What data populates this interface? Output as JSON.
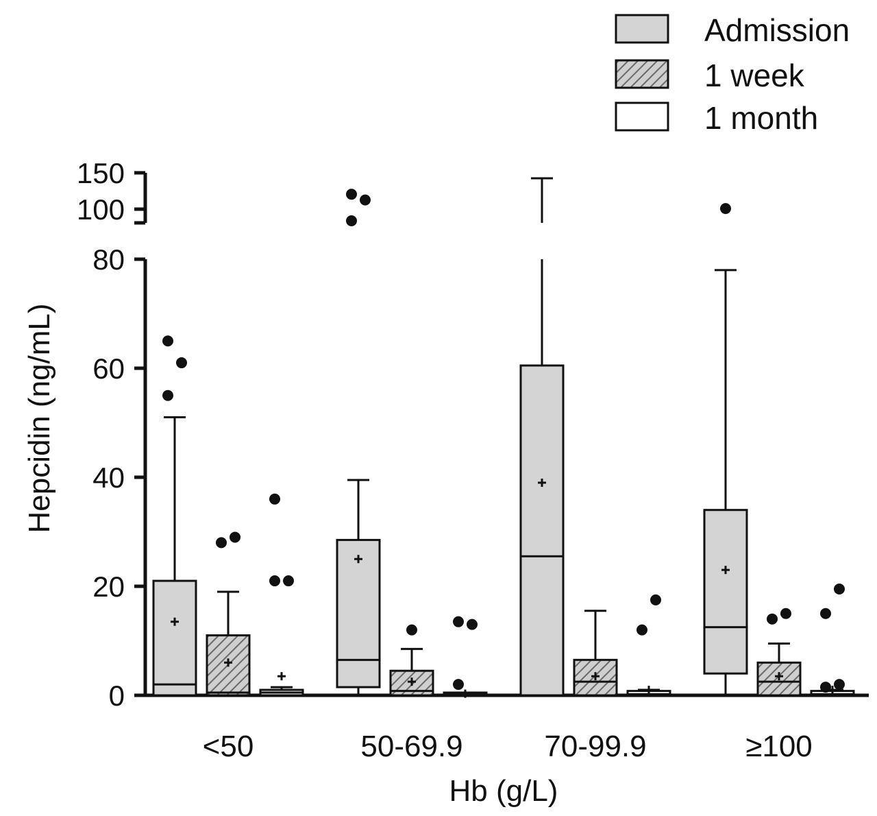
{
  "chart_data": {
    "type": "box",
    "title": "",
    "xlabel": "Hb (g/L)",
    "ylabel": "Hepcidin (ng/mL)",
    "ylim": [
      0,
      150
    ],
    "y_axis_break": {
      "lower_range": [
        0,
        80
      ],
      "upper_range": [
        100,
        150
      ]
    },
    "yticks_lower": [
      0,
      20,
      40,
      60,
      80
    ],
    "yticks_upper": [
      100,
      150
    ],
    "grid": false,
    "legend_position": "top-right",
    "categories": [
      "<50",
      "50-69.9",
      "70-99.9",
      "≥100"
    ],
    "series": [
      {
        "name": "Admission",
        "fill": "gray",
        "fill_color": "#d4d4d4",
        "boxes": [
          {
            "q1": 0,
            "median": 2,
            "q3": 21,
            "whisker_low": 0,
            "whisker_high": 51,
            "mean": 13.5,
            "outliers": [
              55,
              61,
              65
            ]
          },
          {
            "q1": 1.5,
            "median": 6.5,
            "q3": 28.5,
            "whisker_low": 0,
            "whisker_high": 39.5,
            "mean": 25,
            "outliers": [
              95,
              112,
              120
            ]
          },
          {
            "q1": 0,
            "median": 25.5,
            "q3": 60.5,
            "whisker_low": 0,
            "whisker_high": 142,
            "mean": 39,
            "outliers": []
          },
          {
            "q1": 4,
            "median": 12.5,
            "q3": 34,
            "whisker_low": 0,
            "whisker_high": 78,
            "mean": 23,
            "outliers": [
              100
            ]
          }
        ]
      },
      {
        "name": "1 week",
        "fill": "hatched",
        "fill_color": "#c8c8c8",
        "boxes": [
          {
            "q1": 0,
            "median": 0.5,
            "q3": 11,
            "whisker_low": 0,
            "whisker_high": 19,
            "mean": 6,
            "outliers": [
              28,
              29
            ]
          },
          {
            "q1": 0,
            "median": 0.8,
            "q3": 4.5,
            "whisker_low": 0,
            "whisker_high": 8.5,
            "mean": 2.5,
            "outliers": [
              12
            ]
          },
          {
            "q1": 0,
            "median": 2.5,
            "q3": 6.5,
            "whisker_low": 0,
            "whisker_high": 15.5,
            "mean": 3.5,
            "outliers": []
          },
          {
            "q1": 0,
            "median": 2.5,
            "q3": 6,
            "whisker_low": 0,
            "whisker_high": 9.5,
            "mean": 3.5,
            "outliers": [
              14,
              15
            ]
          }
        ]
      },
      {
        "name": "1 month",
        "fill": "white",
        "fill_color": "#ffffff",
        "boxes": [
          {
            "q1": 0,
            "median": 0.5,
            "q3": 1,
            "whisker_low": 0,
            "whisker_high": 1.5,
            "mean": 3.5,
            "outliers": [
              21,
              21,
              36
            ]
          },
          {
            "q1": 0,
            "median": 0.2,
            "q3": 0.5,
            "whisker_low": 0,
            "whisker_high": 0.5,
            "mean": 0.3,
            "outliers": [
              2,
              13,
              13.5
            ]
          },
          {
            "q1": 0,
            "median": 0.2,
            "q3": 0.8,
            "whisker_low": 0,
            "whisker_high": 1,
            "mean": 1,
            "outliers": [
              12,
              17.5
            ]
          },
          {
            "q1": 0,
            "median": 0.2,
            "q3": 0.8,
            "whisker_low": 0,
            "whisker_high": 1,
            "mean": 1,
            "outliers": [
              1.5,
              2,
              15,
              19.5
            ]
          }
        ]
      }
    ]
  }
}
